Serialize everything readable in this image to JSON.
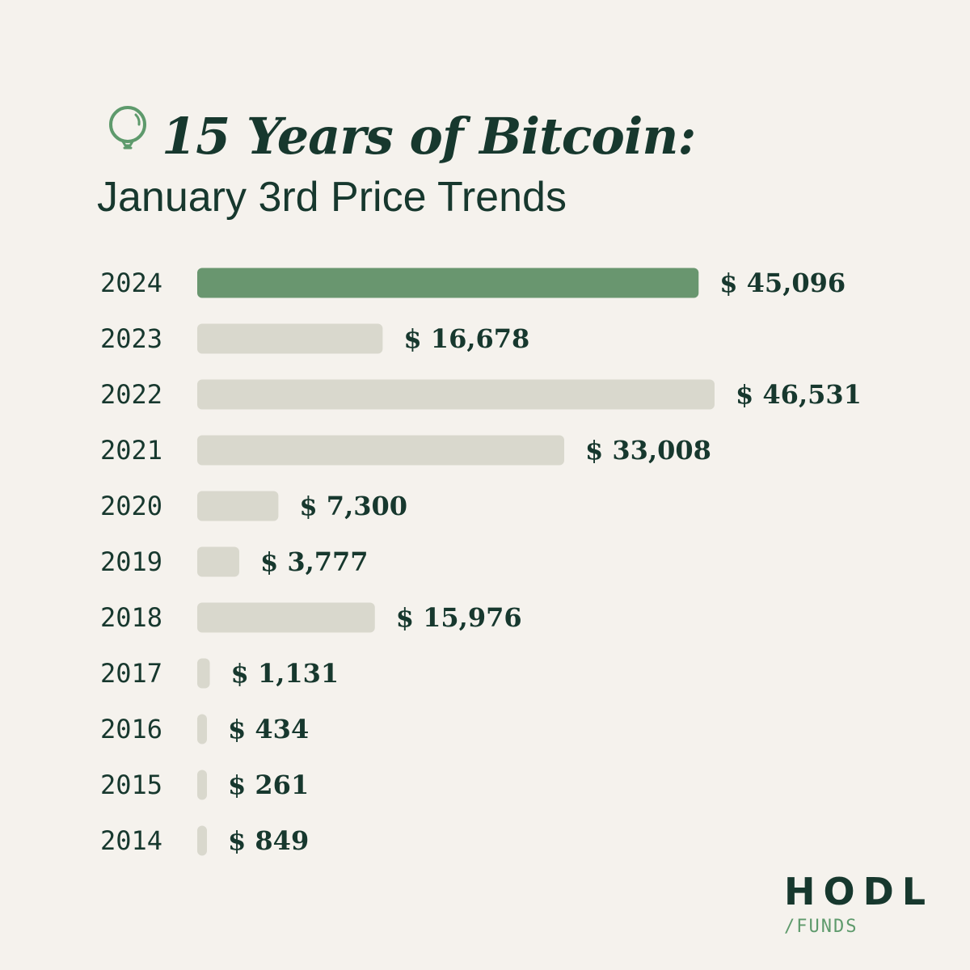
{
  "header": {
    "title": "15 Years of Bitcoin:",
    "subtitle": "January 3rd Price Trends",
    "icon": "balloon-icon"
  },
  "brand": {
    "name": "HODL",
    "tagline": "/FUNDS"
  },
  "colors": {
    "background": "#f5f2ed",
    "text": "#17382e",
    "highlight_bar": "#69966f",
    "bar": "#d9d8cd",
    "accent": "#5e9a6c"
  },
  "chart_data": {
    "type": "bar",
    "orientation": "horizontal",
    "title": "15 Years of Bitcoin:",
    "subtitle": "January 3rd Price Trends",
    "categories": [
      "2024",
      "2023",
      "2022",
      "2021",
      "2020",
      "2019",
      "2018",
      "2017",
      "2016",
      "2015",
      "2014"
    ],
    "values": [
      45096,
      16678,
      46531,
      33008,
      7300,
      3777,
      15976,
      1131,
      434,
      261,
      849
    ],
    "value_labels": [
      "$ 45,096",
      "$ 16,678",
      "$ 46,531",
      "$ 33,008",
      "$ 7,300",
      "$ 3,777",
      "$ 15,976",
      "$ 1,131",
      "$ 434",
      "$ 261",
      "$ 849"
    ],
    "highlight": "2024",
    "xlim": [
      0,
      46531
    ],
    "grid": false,
    "legend": "none"
  }
}
